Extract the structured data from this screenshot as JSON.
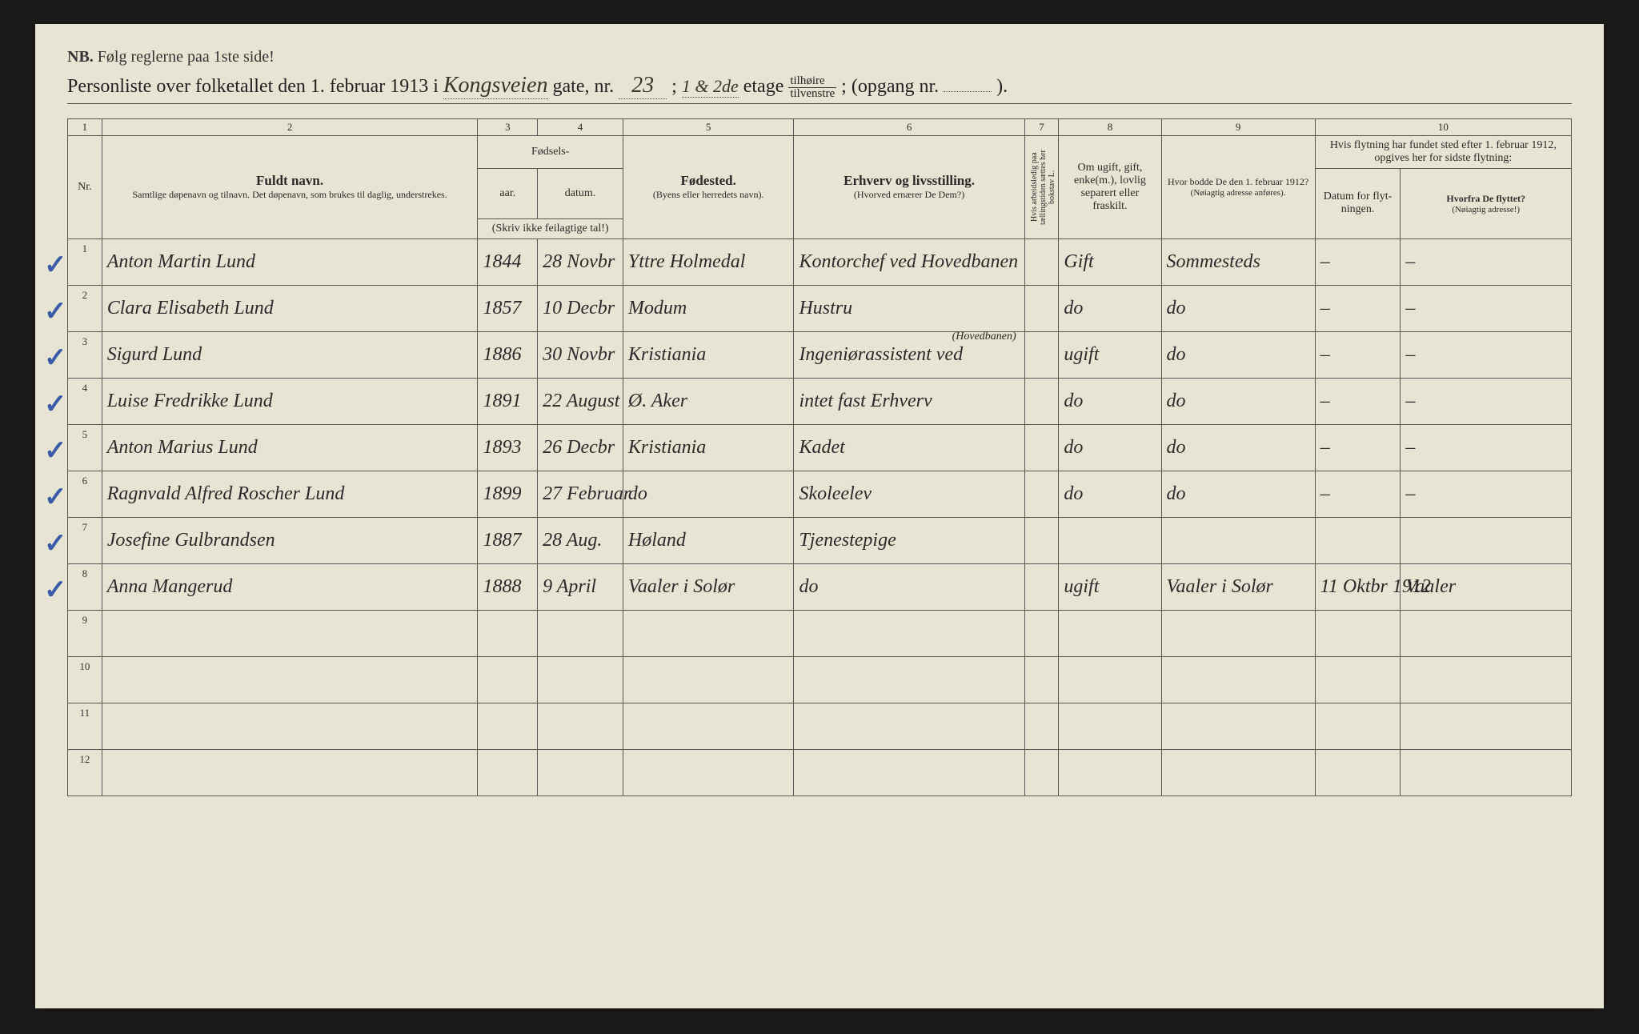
{
  "header": {
    "nb_prefix": "NB.",
    "nb_text": "Følg reglerne paa 1ste side!",
    "title_prefix": "Personliste over folketallet den 1. februar 1913 i",
    "street": "Kongsveien",
    "gate_label": "gate, nr.",
    "gate_nr": "23",
    "semi": ";",
    "etage_hand": "1 & 2de",
    "etage_label": "etage",
    "tilhoire": "tilhøire",
    "tilvenstre": "tilvenstre",
    "opgang_label": "; (opgang nr.",
    "opgang_val": "",
    "closing": ")."
  },
  "colnums": [
    "1",
    "2",
    "3",
    "4",
    "5",
    "6",
    "7",
    "8",
    "9",
    "10"
  ],
  "headers": {
    "nr": "Nr.",
    "fuldt_navn": "Fuldt navn.",
    "fuldt_sub": "Samtlige døpenavn og tilnavn. Det døpenavn, som brukes til daglig, understrekes.",
    "fodsels": "Fødsels-",
    "aar": "aar.",
    "datum": "datum.",
    "skriv": "(Skriv ikke feilagtige tal!)",
    "fodested": "Fødested.",
    "fodested_sub": "(Byens eller herredets navn).",
    "erhverv": "Erhverv og livsstilling.",
    "erhverv_sub": "(Hvorved ernærer De Dem?)",
    "hvis": "Hvis arbeidsledig paa tællingstiden sættes her bokstav L.",
    "om_ugift": "Om ugift, gift, enke(m.), lovlig separert eller fraskilt.",
    "hvor_bodde": "Hvor bodde De den 1. februar 1912?",
    "hvor_sub": "(Nøiagtig adresse anføres).",
    "flytning": "Hvis flytning har fundet sted efter 1. februar 1912, opgives her for sidste flytning:",
    "datum_flyt": "Datum for flyt-ningen.",
    "hvorfra": "Hvorfra De flyttet?",
    "hvorfra_sub": "(Nøiagtig adresse!)"
  },
  "rows": [
    {
      "nr": "1",
      "check": true,
      "name": "Anton Martin Lund",
      "year": "1844",
      "date": "28 Novbr",
      "birthplace": "Yttre Holmedal",
      "occupation": "Kontorchef ved Hovedbanen",
      "hvis": "",
      "marital": "Gift",
      "prev": "Sommesteds",
      "mdate": "–",
      "mfrom": "–"
    },
    {
      "nr": "2",
      "check": true,
      "name": "Clara Elisabeth Lund",
      "year": "1857",
      "date": "10 Decbr",
      "birthplace": "Modum",
      "occupation": "Hustru",
      "hvis": "",
      "marital": "do",
      "prev": "do",
      "mdate": "–",
      "mfrom": "–"
    },
    {
      "nr": "3",
      "check": true,
      "name": "Sigurd Lund",
      "year": "1886",
      "date": "30 Novbr",
      "birthplace": "Kristiania",
      "occupation": "Ingeniørassistent ved",
      "occ_sup": "(Hovedbanen)",
      "hvis": "",
      "marital": "ugift",
      "prev": "do",
      "mdate": "–",
      "mfrom": "–"
    },
    {
      "nr": "4",
      "check": true,
      "name": "Luise Fredrikke Lund",
      "year": "1891",
      "date": "22 August",
      "birthplace": "Ø. Aker",
      "occupation": "intet fast Erhverv",
      "hvis": "",
      "marital": "do",
      "prev": "do",
      "mdate": "–",
      "mfrom": "–"
    },
    {
      "nr": "5",
      "check": true,
      "name": "Anton Marius Lund",
      "year": "1893",
      "date": "26 Decbr",
      "birthplace": "Kristiania",
      "occupation": "Kadet",
      "hvis": "",
      "marital": "do",
      "prev": "do",
      "mdate": "–",
      "mfrom": "–"
    },
    {
      "nr": "6",
      "check": true,
      "name": "Ragnvald Alfred Roscher Lund",
      "year": "1899",
      "date": "27 Februar",
      "birthplace": "do",
      "occupation": "Skoleelev",
      "hvis": "",
      "marital": "do",
      "prev": "do",
      "mdate": "–",
      "mfrom": "–"
    },
    {
      "nr": "7",
      "check": true,
      "name": "Josefine Gulbrandsen",
      "year": "1887",
      "date": "28 Aug.",
      "birthplace": "Høland",
      "occupation": "Tjenestepige",
      "hvis": "",
      "marital": "",
      "prev": "",
      "mdate": "",
      "mfrom": ""
    },
    {
      "nr": "8",
      "check": true,
      "name": "Anna Mangerud",
      "year": "1888",
      "date": "9 April",
      "birthplace": "Vaaler i Solør",
      "occupation": "do",
      "hvis": "",
      "marital": "ugift",
      "prev": "Vaaler i Solør",
      "mdate": "11 Oktbr 1912",
      "mfrom": "Vaaler"
    },
    {
      "nr": "9",
      "check": false,
      "name": "",
      "year": "",
      "date": "",
      "birthplace": "",
      "occupation": "",
      "hvis": "",
      "marital": "",
      "prev": "",
      "mdate": "",
      "mfrom": ""
    },
    {
      "nr": "10",
      "check": false,
      "name": "",
      "year": "",
      "date": "",
      "birthplace": "",
      "occupation": "",
      "hvis": "",
      "marital": "",
      "prev": "",
      "mdate": "",
      "mfrom": ""
    },
    {
      "nr": "11",
      "check": false,
      "name": "",
      "year": "",
      "date": "",
      "birthplace": "",
      "occupation": "",
      "hvis": "",
      "marital": "",
      "prev": "",
      "mdate": "",
      "mfrom": ""
    },
    {
      "nr": "12",
      "check": false,
      "name": "",
      "year": "",
      "date": "",
      "birthplace": "",
      "occupation": "",
      "hvis": "",
      "marital": "",
      "prev": "",
      "mdate": "",
      "mfrom": ""
    }
  ],
  "colors": {
    "paper": "#e8e4d4",
    "border": "#555",
    "ink_print": "#2a2a2a",
    "ink_hand": "#2b2718",
    "checkmark": "#3a5ba8"
  }
}
